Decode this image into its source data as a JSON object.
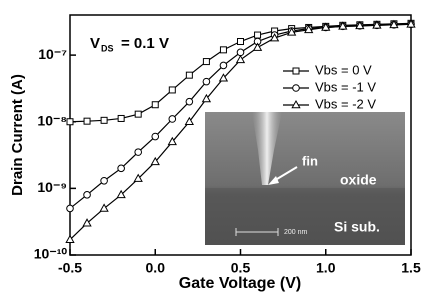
{
  "chart_data": {
    "type": "line",
    "log_y": true,
    "x_label": "Gate Voltage (V)",
    "y_label": "Drain Current (A)",
    "annotations": {
      "vds_symbol": "V",
      "vds_sub": "DS",
      "vds_value": "= 0.1 V"
    },
    "inset": {
      "fin": "fin",
      "oxide": "oxide",
      "substrate": "Si sub.",
      "scale": "200 nm"
    },
    "legend": "upper right",
    "x": [
      -0.5,
      -0.4,
      -0.3,
      -0.2,
      -0.1,
      0.0,
      0.1,
      0.2,
      0.3,
      0.4,
      0.5,
      0.6,
      0.7,
      0.8,
      0.9,
      1.0,
      1.1,
      1.2,
      1.3,
      1.4,
      1.5
    ],
    "series": [
      {
        "name": "Vbs = 0 V",
        "color": "#000000",
        "marker": "square",
        "values": [
          1e-08,
          1.02e-08,
          1.05e-08,
          1.12e-08,
          1.3e-08,
          1.8e-08,
          3e-08,
          5e-08,
          8e-08,
          1.2e-07,
          1.6e-07,
          2e-07,
          2.3e-07,
          2.5e-07,
          2.6e-07,
          2.7e-07,
          2.8e-07,
          2.85e-07,
          2.9e-07,
          2.95e-07,
          3e-07
        ]
      },
      {
        "name": "Vbs = -1 V",
        "color": "#000000",
        "marker": "circle",
        "values": [
          5e-10,
          8e-10,
          1.3e-09,
          2e-09,
          3.5e-09,
          6e-09,
          1.1e-08,
          2e-08,
          4e-08,
          7e-08,
          1.1e-07,
          1.6e-07,
          2e-07,
          2.3e-07,
          2.5e-07,
          2.6e-07,
          2.7e-07,
          2.75e-07,
          2.8e-07,
          2.85e-07,
          2.9e-07
        ]
      },
      {
        "name": "Vbs = -2 V",
        "color": "#000000",
        "marker": "triangle",
        "values": [
          1.7e-10,
          3e-10,
          5e-10,
          8e-10,
          1.4e-09,
          2.5e-09,
          5e-09,
          1e-08,
          2.2e-08,
          4.5e-08,
          8.5e-08,
          1.3e-07,
          1.8e-07,
          2.2e-07,
          2.4e-07,
          2.6e-07,
          2.7e-07,
          2.75e-07,
          2.8e-07,
          2.85e-07,
          2.9e-07
        ]
      }
    ],
    "xlim": [
      -0.5,
      1.5
    ],
    "xticks": [
      -0.5,
      {
        "value": 0,
        "label": "0.0"
      },
      0.5,
      {
        "value": 1,
        "label": "1.0"
      },
      1.5
    ],
    "ylim": [
      1e-10,
      4e-07
    ],
    "yticks": [
      {
        "value": 1e-10,
        "label": "10⁻¹⁰"
      },
      {
        "value": 1e-09,
        "label": "10⁻⁹"
      },
      {
        "value": 1e-08,
        "label": "10⁻⁸"
      },
      {
        "value": 1e-07,
        "label": "10⁻⁷"
      }
    ]
  }
}
